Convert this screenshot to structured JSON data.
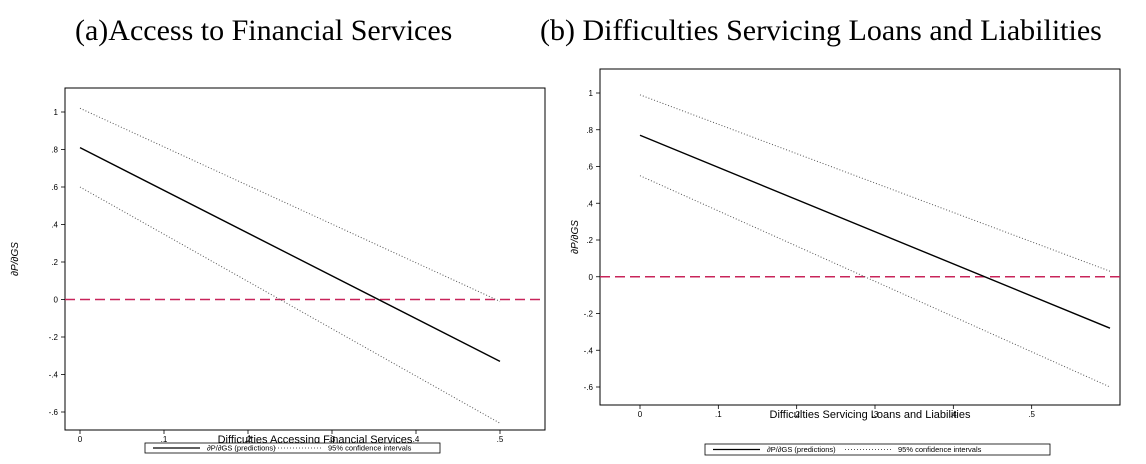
{
  "panels": [
    {
      "caption": "(a)Access to Financial Services"
    },
    {
      "caption": "(b) Difficulties Servicing Loans and Liabilities"
    }
  ],
  "chart_data": [
    {
      "type": "line",
      "title": "(a)Access to Financial Services",
      "xlabel": "Difficulties Accessing Financial Services",
      "ylabel": "∂P/∂GS",
      "xlim": [
        0,
        0.5
      ],
      "ylim": [
        -0.6,
        1.0
      ],
      "xticks": [
        "0",
        ".1",
        ".2",
        ".3",
        ".4",
        ".5"
      ],
      "xtick_values": [
        0,
        0.1,
        0.2,
        0.3,
        0.4,
        0.5
      ],
      "yticks": [
        "-.6",
        "-.4",
        "-.2",
        "0",
        ".2",
        ".4",
        ".6",
        ".8",
        "1"
      ],
      "ytick_values": [
        -0.6,
        -0.4,
        -0.2,
        0,
        0.2,
        0.4,
        0.6,
        0.8,
        1.0
      ],
      "reference_line": {
        "y": 0,
        "color": "#c8245a",
        "style": "dashed"
      },
      "series": [
        {
          "name": "∂P/∂GS (predictions)",
          "style": "solid",
          "color": "#000000",
          "x": [
            0,
            0.5
          ],
          "y": [
            0.81,
            -0.33
          ]
        },
        {
          "name": "95% confidence intervals",
          "style": "dotted",
          "color": "#555555",
          "x": [
            0,
            0.5
          ],
          "y": [
            1.02,
            -0.01
          ]
        },
        {
          "name": "95% confidence intervals",
          "style": "dotted",
          "color": "#555555",
          "x": [
            0,
            0.5
          ],
          "y": [
            0.6,
            -0.66
          ]
        }
      ],
      "legend": {
        "position": "bottom",
        "entries": [
          "∂P/∂GS (predictions)",
          "95% confidence intervals"
        ]
      }
    },
    {
      "type": "line",
      "title": "(b) Difficulties Servicing Loans and Liabilities",
      "xlabel": "Difficulties Servicing Loans and Liabilities",
      "ylabel": "∂P/∂GS",
      "xlim": [
        0,
        0.6
      ],
      "ylim": [
        -0.6,
        1.0
      ],
      "xticks": [
        "0",
        ".1",
        ".2",
        ".3",
        ".4",
        ".5"
      ],
      "xtick_values": [
        0,
        0.1,
        0.2,
        0.3,
        0.4,
        0.5
      ],
      "yticks": [
        "-.6",
        "-.4",
        "-.2",
        "0",
        ".2",
        ".4",
        ".6",
        ".8",
        "1"
      ],
      "ytick_values": [
        -0.6,
        -0.4,
        -0.2,
        0,
        0.2,
        0.4,
        0.6,
        0.8,
        1.0
      ],
      "reference_line": {
        "y": 0,
        "color": "#c8245a",
        "style": "dashed"
      },
      "series": [
        {
          "name": "∂P/∂GS (predictions)",
          "style": "solid",
          "color": "#000000",
          "x": [
            0,
            0.6
          ],
          "y": [
            0.77,
            -0.28
          ]
        },
        {
          "name": "95% confidence intervals",
          "style": "dotted",
          "color": "#555555",
          "x": [
            0,
            0.6
          ],
          "y": [
            0.99,
            0.03
          ]
        },
        {
          "name": "95% confidence intervals",
          "style": "dotted",
          "color": "#555555",
          "x": [
            0,
            0.6
          ],
          "y": [
            0.55,
            -0.6
          ]
        }
      ],
      "legend": {
        "position": "bottom",
        "entries": [
          "∂P/∂GS (predictions)",
          "95% confidence intervals"
        ]
      }
    }
  ]
}
